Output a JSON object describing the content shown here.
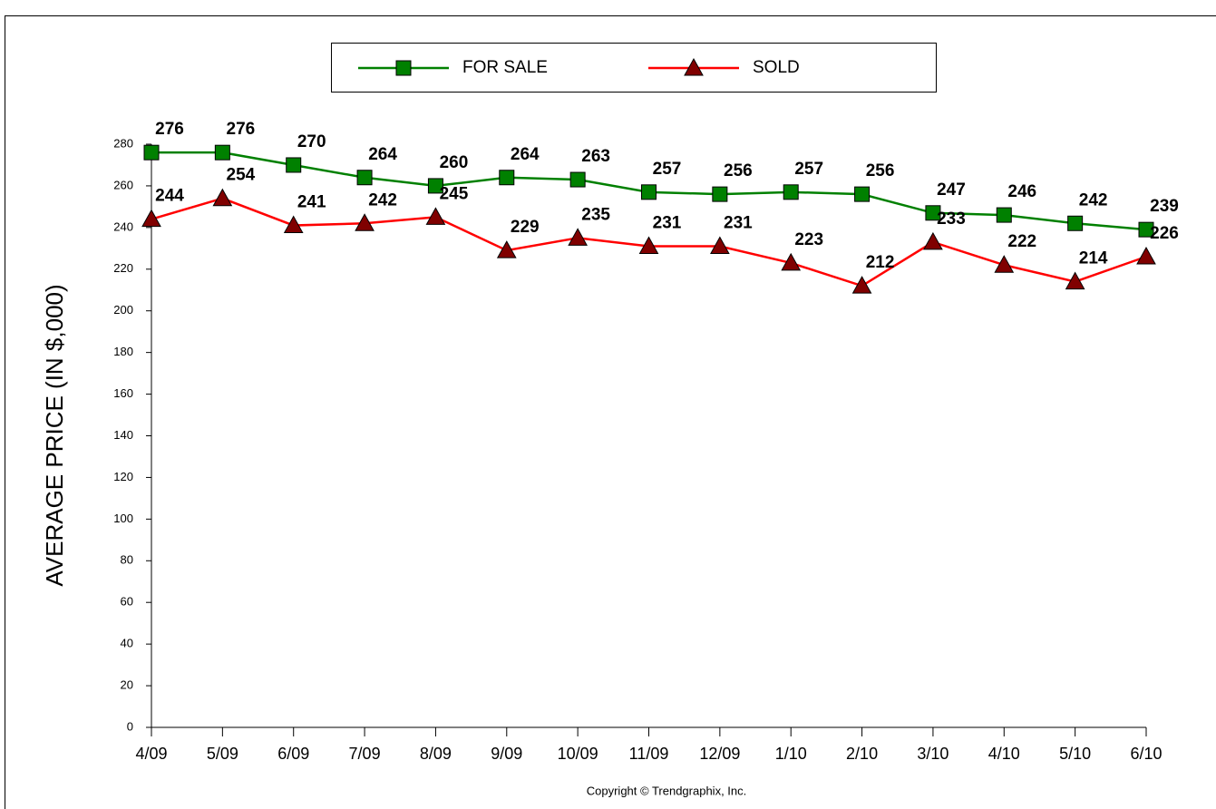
{
  "chart_data": {
    "type": "line",
    "y_label": "AVERAGE PRICE (IN $,000)",
    "footnote": "Copyright © Trendgraphix, Inc.",
    "categories": [
      "4/09",
      "5/09",
      "6/09",
      "7/09",
      "8/09",
      "9/09",
      "10/09",
      "11/09",
      "12/09",
      "1/10",
      "2/10",
      "3/10",
      "4/10",
      "5/10",
      "6/10"
    ],
    "series": [
      {
        "name": "FOR SALE",
        "color": "#008000",
        "marker": "square",
        "values": [
          276,
          276,
          270,
          264,
          260,
          264,
          263,
          257,
          256,
          257,
          256,
          247,
          246,
          242,
          239
        ]
      },
      {
        "name": "SOLD",
        "color": "#ff0000",
        "marker": "triangle",
        "values": [
          244,
          254,
          241,
          242,
          245,
          229,
          235,
          231,
          231,
          223,
          212,
          233,
          222,
          214,
          226
        ]
      }
    ],
    "ylim": [
      0,
      280
    ],
    "yticks": [
      0,
      20,
      40,
      60,
      80,
      100,
      120,
      140,
      160,
      180,
      200,
      220,
      240,
      260,
      280
    ]
  }
}
